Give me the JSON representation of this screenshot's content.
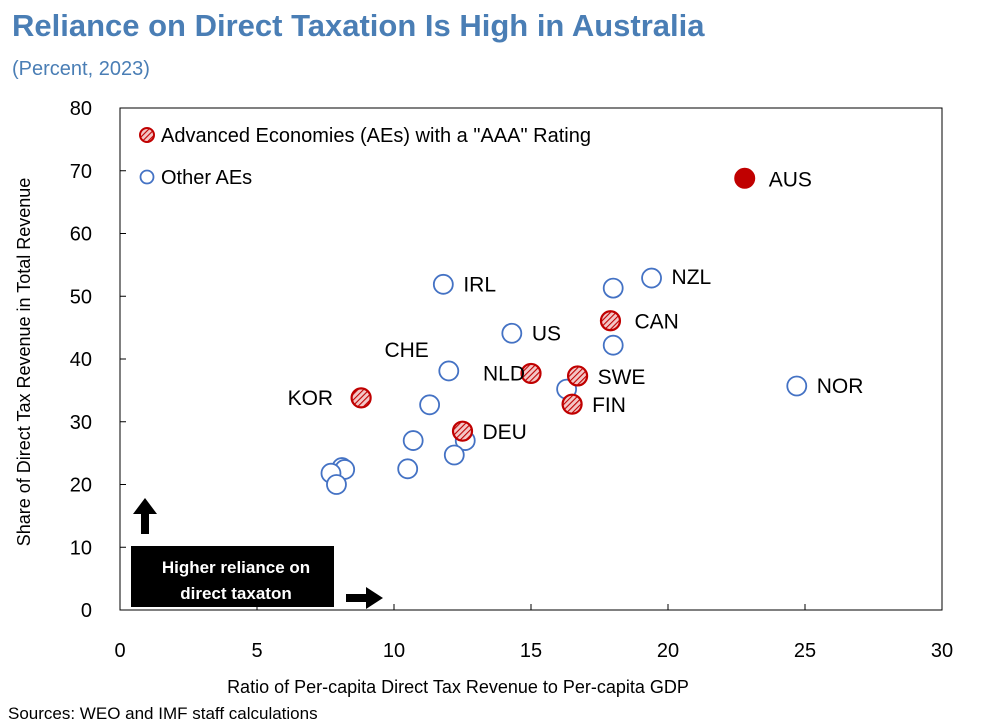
{
  "header": {
    "title": "Reliance on Direct Taxation Is High in Australia",
    "subtitle": "(Percent, 2023)"
  },
  "footer": {
    "source": "Sources: WEO and IMF staff calculations"
  },
  "colors": {
    "title": "#4a7eb5",
    "aaa": "#c00000",
    "other": "#4472c4",
    "annotation_box": "#000000"
  },
  "annotation": {
    "line1": "Higher reliance on",
    "line2": "direct taxaton"
  },
  "chart_data": {
    "type": "scatter",
    "title": "Reliance on Direct Taxation Is High in Australia",
    "xlabel": "Ratio of Per-capita Direct Tax Revenue to Per-capita GDP",
    "ylabel": "Share of Direct Tax Revenue in Total Revenue",
    "xlim": [
      0,
      30
    ],
    "ylim": [
      0,
      80
    ],
    "xticks": [
      0,
      5,
      10,
      15,
      20,
      25,
      30
    ],
    "yticks": [
      0,
      10,
      20,
      30,
      40,
      50,
      60,
      70,
      80
    ],
    "legend": [
      {
        "name": "Advanced Economies (AEs) with a \"AAA\" Rating",
        "style": "hatched-red"
      },
      {
        "name": "Other AEs",
        "style": "open-blue"
      }
    ],
    "series": [
      {
        "name": "AUS",
        "style": "solid-red",
        "points": [
          {
            "x": 22.8,
            "y": 68.8,
            "label": "AUS"
          }
        ]
      },
      {
        "name": "Advanced Economies (AEs) with a \"AAA\" Rating",
        "style": "hatched-red",
        "points": [
          {
            "x": 8.8,
            "y": 33.8,
            "label": "KOR"
          },
          {
            "x": 12.5,
            "y": 28.5,
            "label": "DEU"
          },
          {
            "x": 15.0,
            "y": 37.7,
            "label": "NLD"
          },
          {
            "x": 16.7,
            "y": 37.3,
            "label": "SWE"
          },
          {
            "x": 16.5,
            "y": 32.8,
            "label": "FIN"
          },
          {
            "x": 17.9,
            "y": 46.1,
            "label": "CAN"
          }
        ]
      },
      {
        "name": "Other AEs",
        "style": "open-blue",
        "points": [
          {
            "x": 11.8,
            "y": 51.9,
            "label": "IRL"
          },
          {
            "x": 14.3,
            "y": 44.1,
            "label": "US"
          },
          {
            "x": 19.4,
            "y": 52.9,
            "label": "NZL"
          },
          {
            "x": 24.7,
            "y": 35.7,
            "label": "NOR"
          },
          {
            "x": 12.0,
            "y": 38.1,
            "label": "CHE"
          },
          {
            "x": 18.0,
            "y": 51.3,
            "label": ""
          },
          {
            "x": 18.0,
            "y": 42.2,
            "label": ""
          },
          {
            "x": 16.3,
            "y": 35.2,
            "label": ""
          },
          {
            "x": 11.3,
            "y": 32.7,
            "label": ""
          },
          {
            "x": 10.7,
            "y": 27.0,
            "label": ""
          },
          {
            "x": 12.6,
            "y": 27.0,
            "label": ""
          },
          {
            "x": 12.2,
            "y": 24.7,
            "label": ""
          },
          {
            "x": 10.5,
            "y": 22.5,
            "label": ""
          },
          {
            "x": 8.1,
            "y": 22.7,
            "label": ""
          },
          {
            "x": 8.2,
            "y": 22.4,
            "label": ""
          },
          {
            "x": 7.7,
            "y": 21.8,
            "label": ""
          },
          {
            "x": 7.9,
            "y": 20.0,
            "label": ""
          }
        ]
      }
    ]
  }
}
